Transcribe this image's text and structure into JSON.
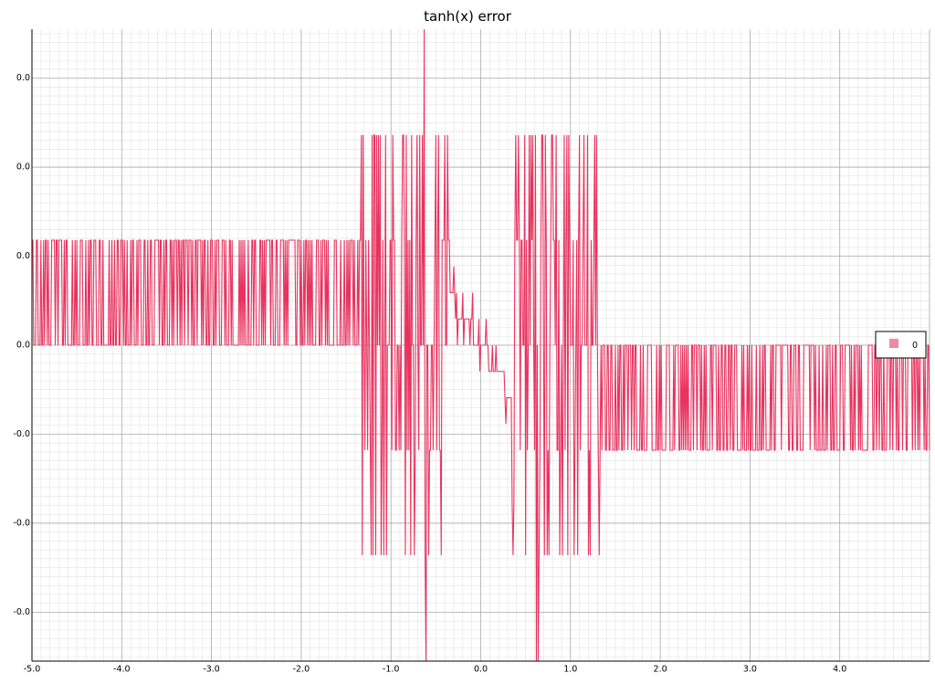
{
  "chart_data": {
    "type": "line",
    "title": "tanh(x) error",
    "xlabel": "",
    "ylabel": "",
    "xlim": [
      -5.0,
      5.0
    ],
    "ylim": [
      -3.55e-17,
      3.55e-17
    ],
    "x_ticks": [
      "-5.0",
      "-4.0",
      "-3.0",
      "-2.0",
      "-1.0",
      "0.0",
      "1.0",
      "2.0",
      "3.0",
      "4.0"
    ],
    "x_tick_values": [
      -5,
      -4,
      -3,
      -2,
      -1,
      0,
      1,
      2,
      3,
      4
    ],
    "y_ticks": [
      "0.0",
      "0.0",
      "0.0",
      "0.0",
      "-0.0",
      "-0.0",
      "-0.0"
    ],
    "y_tick_values": [
      3e-17,
      2e-17,
      1e-17,
      0,
      -1e-17,
      -2e-17,
      -3e-17
    ],
    "grid": true,
    "legend_position": "right",
    "series": [
      {
        "name": "0",
        "color": "#e8335f",
        "legend_swatch_color": "#f08aa3",
        "x_start": -5.0,
        "x_step": 0.01,
        "seed": 12345,
        "levels": [
          -3.47e-17,
          -2.36e-17,
          -1.18e-17,
          0.0,
          1.18e-17,
          2.36e-17,
          3.55e-17
        ],
        "regions": [
          {
            "x_from": -5.0,
            "x_to": -1.35,
            "low": 0.0,
            "high": 1.18e-17,
            "p_high": 0.5
          },
          {
            "x_from": -1.35,
            "x_to": -0.35,
            "mode": "chaotic"
          },
          {
            "x_from": -0.35,
            "x_to": 0.35,
            "mode": "transition"
          },
          {
            "x_from": 0.35,
            "x_to": 1.3,
            "mode": "chaotic"
          },
          {
            "x_from": 1.3,
            "x_to": 5.0,
            "low": -1.18e-17,
            "high": 0.0,
            "p_high": 0.5
          }
        ],
        "spikes": [
          {
            "x": -0.63,
            "y": 3.55e-17
          },
          {
            "x": -0.61,
            "y": -3.55e-17
          },
          {
            "x": 0.62,
            "y": -3.55e-17
          },
          {
            "x": 0.64,
            "y": -3.55e-17
          },
          {
            "x": -1.33,
            "y": 2.36e-17
          },
          {
            "x": -1.21,
            "y": 2.36e-17
          },
          {
            "x": -1.19,
            "y": 2.36e-17
          },
          {
            "x": -0.86,
            "y": 2.36e-17
          },
          {
            "x": -0.71,
            "y": 2.36e-17
          },
          {
            "x": -0.37,
            "y": 2.36e-17
          },
          {
            "x": 0.56,
            "y": 2.36e-17
          },
          {
            "x": 0.58,
            "y": 2.36e-17
          },
          {
            "x": 0.68,
            "y": 2.36e-17
          },
          {
            "x": -1.2,
            "y": -2.36e-17
          },
          {
            "x": -0.58,
            "y": -2.36e-17
          },
          {
            "x": 0.71,
            "y": -2.36e-17
          },
          {
            "x": 0.76,
            "y": -2.36e-17
          },
          {
            "x": 0.88,
            "y": -2.36e-17
          },
          {
            "x": 1.2,
            "y": -2.36e-17
          },
          {
            "x": 1.32,
            "y": -2.36e-17
          },
          {
            "x": 0.35,
            "y": -1.77e-17
          },
          {
            "x": 0.37,
            "y": -1.77e-17
          }
        ]
      }
    ]
  }
}
